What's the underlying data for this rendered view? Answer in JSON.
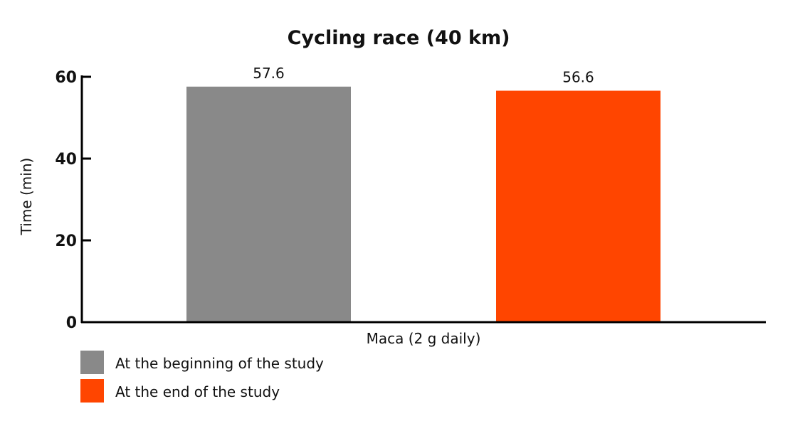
{
  "chart_data": {
    "type": "bar",
    "title": "Cycling race (40 km)",
    "xlabel": "Maca (2 g daily)",
    "ylabel": "Time (min)",
    "ylim": [
      0,
      60
    ],
    "yticks": [
      0,
      20,
      40,
      60
    ],
    "categories": [
      "Maca (2 g daily)"
    ],
    "series": [
      {
        "name": "At the beginning of the study",
        "values": [
          57.6
        ],
        "color": "#898989",
        "label": "57.6"
      },
      {
        "name": "At the end of the study",
        "values": [
          56.6
        ],
        "color": "#ff4500",
        "label": "56.6"
      }
    ],
    "grid": false,
    "legend_placement": "bottom-left"
  }
}
